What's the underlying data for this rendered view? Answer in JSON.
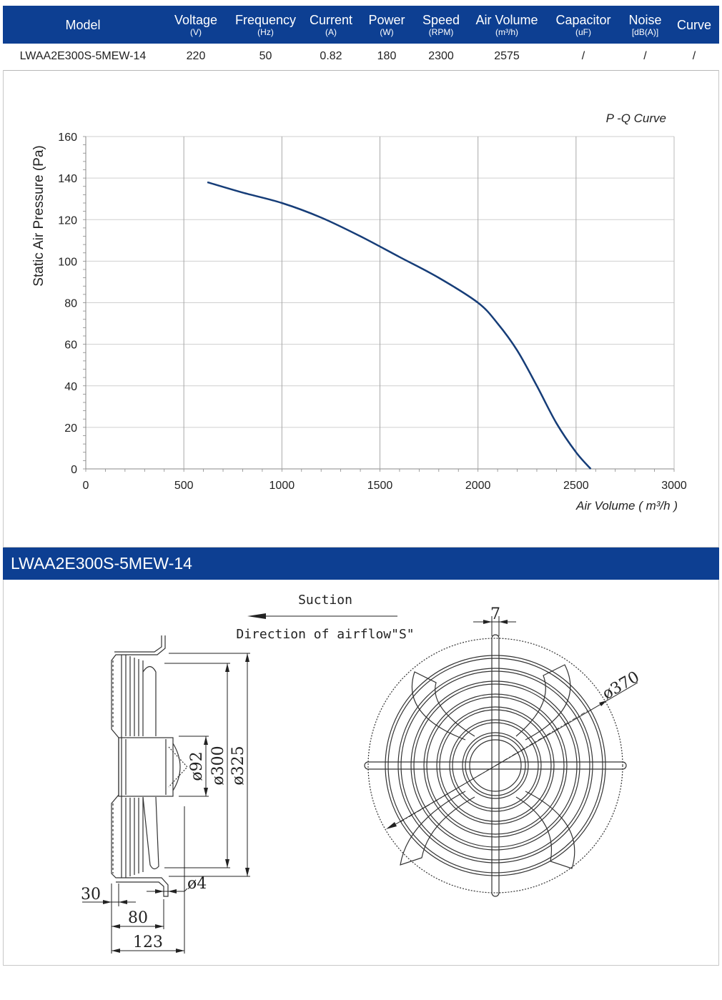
{
  "table": {
    "headers": [
      {
        "label": "Model",
        "unit": ""
      },
      {
        "label": "Voltage",
        "unit": "(V)"
      },
      {
        "label": "Frequency",
        "unit": "(Hz)"
      },
      {
        "label": "Current",
        "unit": "(A)"
      },
      {
        "label": "Power",
        "unit": "(W)"
      },
      {
        "label": "Speed",
        "unit": "(RPM)"
      },
      {
        "label": "Air Volume",
        "unit": "(m³/h)"
      },
      {
        "label": "Capacitor",
        "unit": "(uF)"
      },
      {
        "label": "Noise",
        "unit": "[dB(A)]"
      },
      {
        "label": "Curve",
        "unit": ""
      }
    ],
    "row": [
      "LWAA2E300S-5MEW-14",
      "220",
      "50",
      "0.82",
      "180",
      "2300",
      "2575",
      "/",
      "/",
      "/"
    ]
  },
  "chart_data": {
    "type": "line",
    "title": "P -Q Curve",
    "xlabel": "Air Volume ( m³/h )",
    "ylabel": "Static Air Pressure  (Pa)",
    "xlim": [
      0,
      3000
    ],
    "ylim": [
      0,
      160
    ],
    "xticks": [
      0,
      500,
      1000,
      1500,
      2000,
      2500,
      3000
    ],
    "yticks": [
      0,
      20,
      40,
      60,
      80,
      100,
      120,
      140,
      160
    ],
    "grid": true,
    "series": [
      {
        "x": [
          620,
          800,
          1000,
          1200,
          1400,
          1600,
          1800,
          2000,
          2100,
          2200,
          2300,
          2400,
          2500,
          2575
        ],
        "y": [
          138,
          133,
          128,
          121,
          112,
          102,
          92,
          80,
          70,
          57,
          40,
          22,
          8,
          0
        ],
        "color": "#163d78"
      }
    ]
  },
  "section_title": "LWAA2E300S-5MEW-14",
  "drawing": {
    "suction_label": "Suction",
    "airflow_label": "Direction of airflow\"S\"",
    "dims": {
      "d92": "ø92",
      "d300": "ø300",
      "d325": "ø325",
      "d4": "ø4",
      "w30": "30",
      "w80": "80",
      "w123": "123",
      "w7": "7",
      "d370": "ø370"
    }
  }
}
